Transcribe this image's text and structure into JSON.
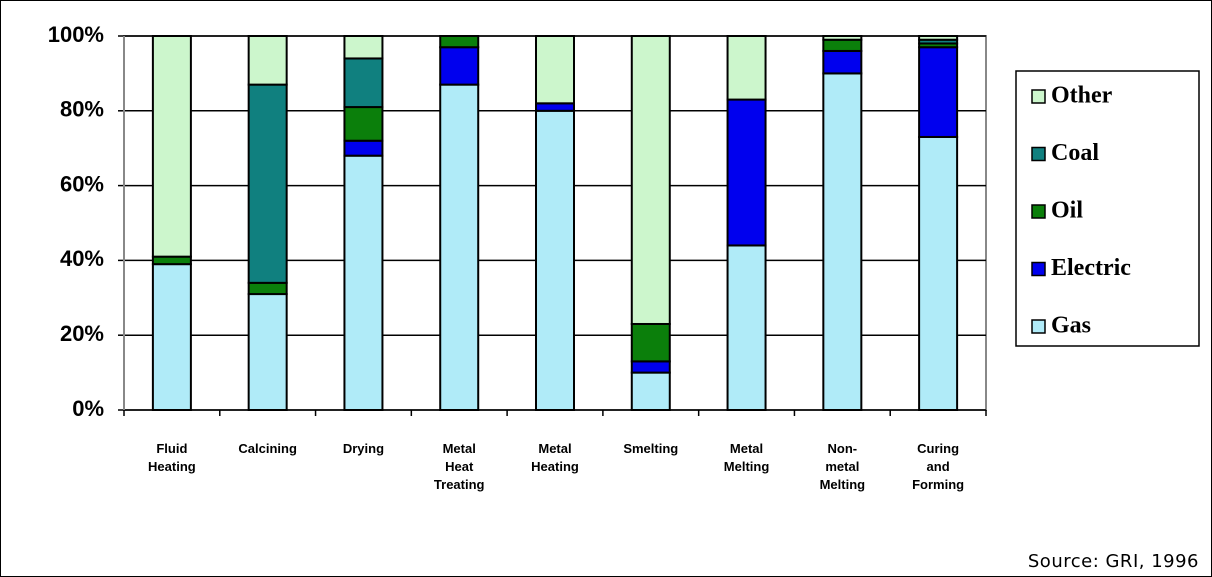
{
  "chart_data": {
    "type": "stacked_bar",
    "categories": [
      "Fluid Heating",
      "Calcining",
      "Drying",
      "Metal Heat Treating",
      "Metal Heating",
      "Smelting",
      "Metal Melting",
      "Non-metal Melting",
      "Curing and Forming"
    ],
    "series": [
      {
        "name": "Gas",
        "color": "#b0ebf8",
        "values": [
          39,
          31,
          68,
          87,
          80,
          10,
          44,
          90,
          73
        ]
      },
      {
        "name": "Electric",
        "color": "#0000ee",
        "values": [
          0,
          0,
          4,
          10,
          2,
          3,
          39,
          6,
          24
        ]
      },
      {
        "name": "Oil",
        "color": "#0b7f0b",
        "values": [
          2,
          3,
          9,
          3,
          0,
          10,
          0,
          3,
          1
        ]
      },
      {
        "name": "Coal",
        "color": "#10807f",
        "values": [
          0,
          53,
          13,
          0,
          0,
          0,
          0,
          0,
          1
        ]
      },
      {
        "name": "Other",
        "color": "#ccf6cc",
        "values": [
          59,
          13,
          6,
          0,
          18,
          77,
          17,
          1,
          1
        ]
      }
    ],
    "ylim": [
      0,
      100
    ],
    "yticks": [
      {
        "value": 0,
        "label": "0%"
      },
      {
        "value": 20,
        "label": "20%"
      },
      {
        "value": 40,
        "label": "40%"
      },
      {
        "value": 60,
        "label": "60%"
      },
      {
        "value": 80,
        "label": "80%"
      },
      {
        "value": 100,
        "label": "100%"
      }
    ],
    "grid": true,
    "legend": "right",
    "source": "Source:  GRI, 1996"
  }
}
